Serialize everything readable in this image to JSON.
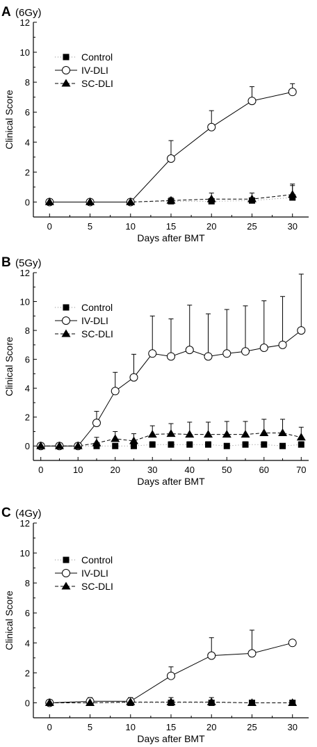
{
  "chart_data": [
    {
      "type": "line",
      "panel_label": "A",
      "dose_label": "(6Gy)",
      "xlabel": "Days after BMT",
      "ylabel": "Clinical Score",
      "xlim": [
        -2,
        32
      ],
      "ylim": [
        -1,
        12
      ],
      "xticks": [
        0,
        5,
        10,
        15,
        20,
        25,
        30
      ],
      "yticks": [
        0,
        2,
        4,
        6,
        8,
        10,
        12
      ],
      "legend_position": "top-left",
      "series": [
        {
          "name": "Control",
          "marker": "filled-square",
          "line": "dotted",
          "x": [
            0,
            5,
            10,
            15,
            20,
            25,
            30
          ],
          "y": [
            0,
            0,
            0,
            0.05,
            0.05,
            0.1,
            0.3
          ],
          "err": [
            0,
            0,
            0,
            0,
            0,
            0,
            0.8
          ]
        },
        {
          "name": "IV-DLI",
          "marker": "open-circle",
          "line": "solid",
          "x": [
            0,
            5,
            10,
            15,
            20,
            25,
            30
          ],
          "y": [
            0,
            0,
            0,
            2.9,
            5.0,
            6.75,
            7.35
          ],
          "err": [
            0,
            0,
            0,
            1.2,
            1.1,
            0.95,
            0.55
          ]
        },
        {
          "name": "SC-DLI",
          "marker": "filled-triangle",
          "line": "dashed",
          "x": [
            0,
            5,
            10,
            15,
            20,
            25,
            30
          ],
          "y": [
            0,
            0,
            0,
            0.1,
            0.2,
            0.2,
            0.5
          ],
          "err": [
            0,
            0,
            0,
            0.2,
            0.4,
            0.4,
            0.7
          ]
        }
      ]
    },
    {
      "type": "line",
      "panel_label": "B",
      "dose_label": "(5Gy)",
      "xlabel": "Days after BMT",
      "ylabel": "Clinical Score",
      "xlim": [
        -2,
        72
      ],
      "ylim": [
        -1,
        12
      ],
      "xticks": [
        0,
        10,
        20,
        30,
        40,
        50,
        60,
        70
      ],
      "yticks": [
        0,
        2,
        4,
        6,
        8,
        10,
        12
      ],
      "legend_position": "top-left",
      "series": [
        {
          "name": "Control",
          "marker": "filled-square",
          "line": "dotted",
          "x": [
            0,
            5,
            10,
            15,
            20,
            25,
            30,
            35,
            40,
            45,
            50,
            55,
            60,
            65,
            70
          ],
          "y": [
            0,
            0,
            0,
            0,
            0,
            0,
            0.1,
            0.1,
            0.1,
            0.1,
            0,
            0.1,
            0.1,
            0,
            0.1
          ],
          "err": [
            0,
            0,
            0,
            0.1,
            0.1,
            0.1,
            0.2,
            0.2,
            0.2,
            0.2,
            0.1,
            0.2,
            0.2,
            0.1,
            0.2
          ]
        },
        {
          "name": "IV-DLI",
          "marker": "open-circle",
          "line": "solid",
          "x": [
            0,
            5,
            10,
            15,
            20,
            25,
            30,
            35,
            40,
            45,
            50,
            55,
            60,
            65,
            70
          ],
          "y": [
            0,
            0,
            0,
            1.6,
            3.8,
            4.75,
            6.4,
            6.2,
            6.65,
            6.2,
            6.4,
            6.55,
            6.8,
            7.0,
            8.0
          ],
          "err": [
            0,
            0,
            0,
            0.8,
            1.3,
            1.6,
            2.6,
            2.6,
            3.1,
            2.95,
            3.05,
            3.15,
            3.25,
            3.35,
            3.9
          ]
        },
        {
          "name": "SC-DLI",
          "marker": "filled-triangle",
          "line": "dashed",
          "x": [
            0,
            5,
            10,
            15,
            20,
            25,
            30,
            35,
            40,
            45,
            50,
            55,
            60,
            65,
            70
          ],
          "y": [
            0,
            0,
            0,
            0.2,
            0.5,
            0.35,
            0.8,
            0.85,
            0.8,
            0.8,
            0.8,
            0.8,
            0.9,
            0.9,
            0.6
          ],
          "err": [
            0,
            0,
            0,
            0.4,
            0.5,
            0.5,
            0.6,
            0.7,
            0.85,
            0.85,
            0.9,
            0.9,
            0.95,
            0.95,
            0.7
          ]
        }
      ]
    },
    {
      "type": "line",
      "panel_label": "C",
      "dose_label": "(4Gy)",
      "xlabel": "Days after BMT",
      "ylabel": "Clinical Score",
      "xlim": [
        -2,
        32
      ],
      "ylim": [
        -1,
        12
      ],
      "xticks": [
        0,
        5,
        10,
        15,
        20,
        25,
        30
      ],
      "yticks": [
        0,
        2,
        4,
        6,
        8,
        10,
        12
      ],
      "legend_position": "top-left",
      "series": [
        {
          "name": "Control",
          "marker": "filled-square",
          "line": "dotted",
          "x": [
            0,
            5,
            10,
            15,
            20,
            25,
            30
          ],
          "y": [
            0,
            0,
            0,
            0,
            0,
            0,
            0
          ],
          "err": [
            0,
            0,
            0,
            0.05,
            0.05,
            0.05,
            0.05
          ]
        },
        {
          "name": "IV-DLI",
          "marker": "open-circle",
          "line": "solid",
          "x": [
            0,
            5,
            10,
            15,
            20,
            25,
            30
          ],
          "y": [
            0,
            0.1,
            0.1,
            1.8,
            3.15,
            3.3,
            4.0
          ],
          "err": [
            0,
            0.25,
            0.25,
            0.6,
            1.2,
            1.55,
            0
          ]
        },
        {
          "name": "SC-DLI",
          "marker": "filled-triangle",
          "line": "dashed",
          "x": [
            0,
            5,
            10,
            15,
            20,
            25,
            30
          ],
          "y": [
            0,
            0,
            0.05,
            0.05,
            0.05,
            0,
            0
          ],
          "err": [
            0,
            0.2,
            0.2,
            0.3,
            0.3,
            0.1,
            0.1
          ]
        }
      ]
    }
  ]
}
